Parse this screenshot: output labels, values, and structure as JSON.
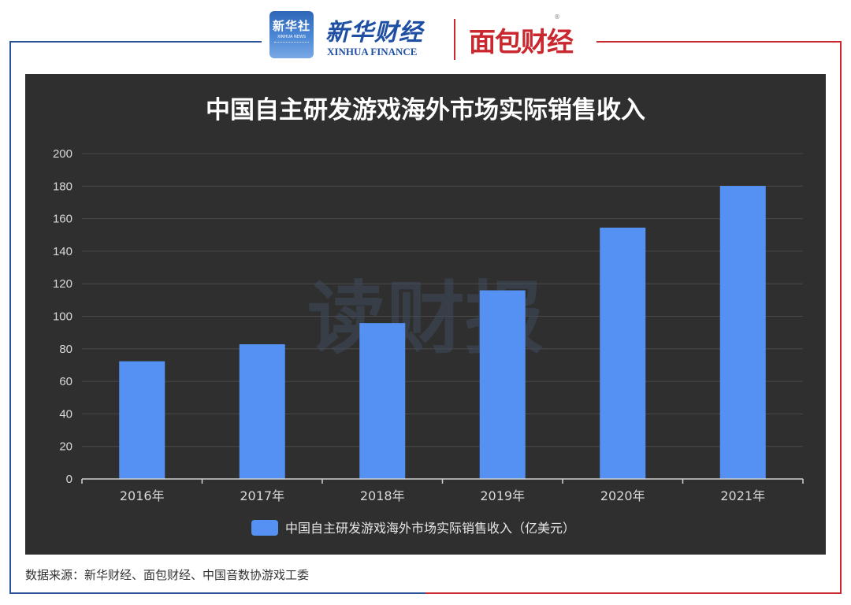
{
  "header": {
    "xinhua_badge_text": "新华社",
    "xinhua_badge_sub": "XINHUA NEWS",
    "xinhua_finance_cn": "新华财经",
    "xinhua_finance_en": "XINHUA FINANCE",
    "mianbao_finance": "面包财经",
    "registered_mark": "®"
  },
  "watermark": "读财报",
  "source_note": "数据来源：新华财经、面包财经、中国音数协游戏工委",
  "colors": {
    "frame_left": "#2a5298",
    "frame_right": "#c8282e",
    "panel_bg": "#2f2f2f",
    "bar": "#5591f2",
    "text_light": "#ffffff",
    "axis_text": "#d9d9d9",
    "grid": "#4a4a4a"
  },
  "chart_data": {
    "type": "bar",
    "title": "中国自主研发游戏海外市场实际销售收入",
    "categories": [
      "2016年",
      "2017年",
      "2018年",
      "2019年",
      "2020年",
      "2021年"
    ],
    "series": [
      {
        "name": "中国自主研发游戏海外市场实际销售收入（亿美元）",
        "values": [
          72.35,
          82.8,
          95.81,
          115.95,
          154.5,
          180.13
        ]
      }
    ],
    "yticks": [
      0,
      20,
      40,
      60,
      80,
      100,
      120,
      140,
      160,
      180,
      200
    ],
    "ylim": [
      0,
      200
    ],
    "grid": true,
    "legend": "bottom-center"
  }
}
